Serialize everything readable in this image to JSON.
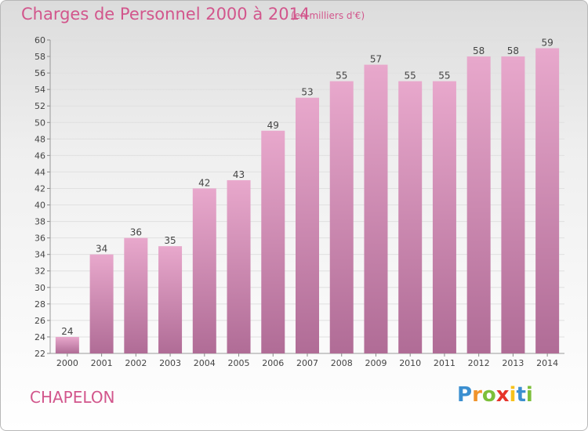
{
  "header": {
    "title": "Charges de Personnel 2000 à 2014",
    "unit": "(en milliers d'€)"
  },
  "footer": {
    "commune": "CHAPELON",
    "logo": {
      "text": "Proxiti",
      "letters": [
        "P",
        "r",
        "o",
        "x",
        "i",
        "t",
        "i"
      ],
      "colors": [
        "#3b8fd0",
        "#f0932b",
        "#7cbf3a",
        "#e6332a",
        "#f7c11a",
        "#3b8fd0",
        "#7cbf3a"
      ]
    }
  },
  "colors": {
    "bar_top": "#e8a8cc",
    "bar_bottom": "#b06c96",
    "title": "#d2568c",
    "axis_text": "#444444",
    "grid": "#e0e0e0"
  },
  "chart_data": {
    "type": "bar",
    "categories": [
      "2000",
      "2001",
      "2002",
      "2003",
      "2004",
      "2005",
      "2006",
      "2007",
      "2008",
      "2009",
      "2010",
      "2011",
      "2012",
      "2013",
      "2014"
    ],
    "values": [
      24,
      34,
      36,
      35,
      42,
      43,
      49,
      53,
      55,
      57,
      55,
      55,
      58,
      58,
      59
    ],
    "ylim": [
      22,
      60
    ],
    "ytick_step": 2,
    "grid": true
  }
}
